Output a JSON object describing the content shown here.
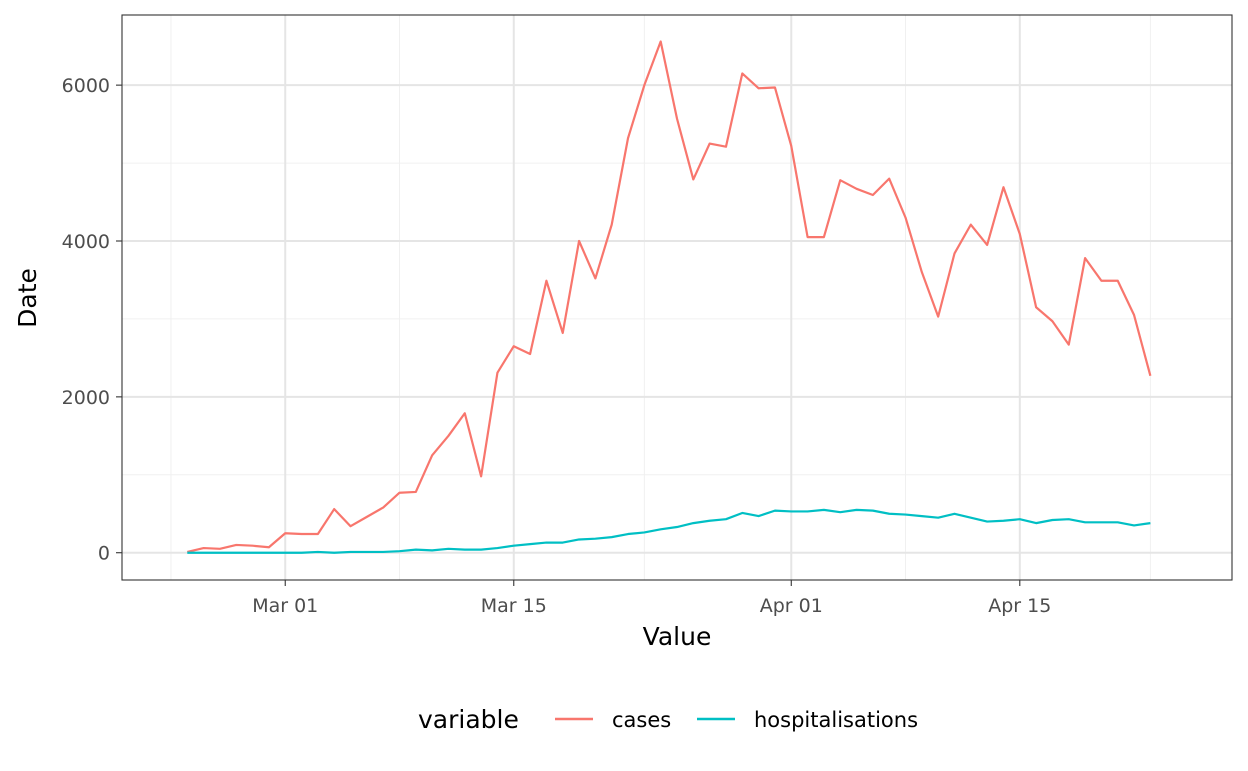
{
  "chart_data": {
    "type": "line",
    "xlabel": "Value",
    "ylabel": "Date",
    "x_axis": {
      "kind": "date",
      "range": [
        "2020-02-20",
        "2020-04-28"
      ],
      "ticks": [
        {
          "date": "2020-03-01",
          "label": "Mar 01"
        },
        {
          "date": "2020-03-15",
          "label": "Mar 15"
        },
        {
          "date": "2020-04-01",
          "label": "Apr 01"
        },
        {
          "date": "2020-04-15",
          "label": "Apr 15"
        }
      ],
      "minor_ticks": [
        "2020-02-23",
        "2020-03-08",
        "2020-03-23",
        "2020-04-08",
        "2020-04-23"
      ]
    },
    "y_axis": {
      "range": [
        -350,
        6900
      ],
      "ticks": [
        0,
        2000,
        4000,
        6000
      ],
      "minor_ticks": [
        1000,
        3000,
        5000
      ]
    },
    "grid": true,
    "legend": {
      "title": "variable",
      "position": "bottom",
      "entries": [
        {
          "name": "cases",
          "color": "#F8766D"
        },
        {
          "name": "hospitalisations",
          "color": "#00BFC4"
        }
      ]
    },
    "x": [
      "2020-02-24",
      "2020-02-25",
      "2020-02-26",
      "2020-02-27",
      "2020-02-28",
      "2020-02-29",
      "2020-03-01",
      "2020-03-02",
      "2020-03-03",
      "2020-03-04",
      "2020-03-05",
      "2020-03-06",
      "2020-03-07",
      "2020-03-08",
      "2020-03-09",
      "2020-03-10",
      "2020-03-11",
      "2020-03-12",
      "2020-03-13",
      "2020-03-14",
      "2020-03-15",
      "2020-03-16",
      "2020-03-17",
      "2020-03-18",
      "2020-03-19",
      "2020-03-20",
      "2020-03-21",
      "2020-03-22",
      "2020-03-23",
      "2020-03-24",
      "2020-03-25",
      "2020-03-26",
      "2020-03-27",
      "2020-03-28",
      "2020-03-29",
      "2020-03-30",
      "2020-03-31",
      "2020-04-01",
      "2020-04-02",
      "2020-04-03",
      "2020-04-04",
      "2020-04-05",
      "2020-04-06",
      "2020-04-07",
      "2020-04-08",
      "2020-04-09",
      "2020-04-10",
      "2020-04-11",
      "2020-04-12",
      "2020-04-13",
      "2020-04-14",
      "2020-04-15",
      "2020-04-16",
      "2020-04-17",
      "2020-04-18",
      "2020-04-19",
      "2020-04-20",
      "2020-04-21",
      "2020-04-22",
      "2020-04-23"
    ],
    "series": [
      {
        "name": "cases",
        "color": "#F8766D",
        "values": [
          10,
          60,
          50,
          100,
          90,
          70,
          250,
          240,
          240,
          560,
          340,
          460,
          580,
          770,
          780,
          1250,
          1500,
          1790,
          980,
          2310,
          2650,
          2550,
          3490,
          2820,
          4000,
          3520,
          4210,
          5320,
          6000,
          6560,
          5570,
          4790,
          5250,
          5210,
          6150,
          5960,
          5970,
          5220,
          4050,
          4050,
          4780,
          4670,
          4590,
          4800,
          4300,
          3600,
          3030,
          3840,
          4210,
          3950,
          4690,
          4090,
          3150,
          2970,
          2670,
          3780,
          3490,
          3490,
          3050,
          2270
        ]
      },
      {
        "name": "hospitalisations",
        "color": "#00BFC4",
        "values": [
          0,
          0,
          0,
          0,
          0,
          0,
          0,
          0,
          10,
          0,
          10,
          10,
          10,
          20,
          40,
          30,
          50,
          40,
          40,
          60,
          90,
          110,
          130,
          130,
          170,
          180,
          200,
          240,
          260,
          300,
          330,
          380,
          410,
          430,
          510,
          470,
          540,
          530,
          530,
          550,
          520,
          550,
          540,
          500,
          490,
          470,
          450,
          500,
          450,
          400,
          410,
          430,
          380,
          420,
          430,
          390,
          390,
          390,
          350,
          380
        ]
      }
    ]
  }
}
